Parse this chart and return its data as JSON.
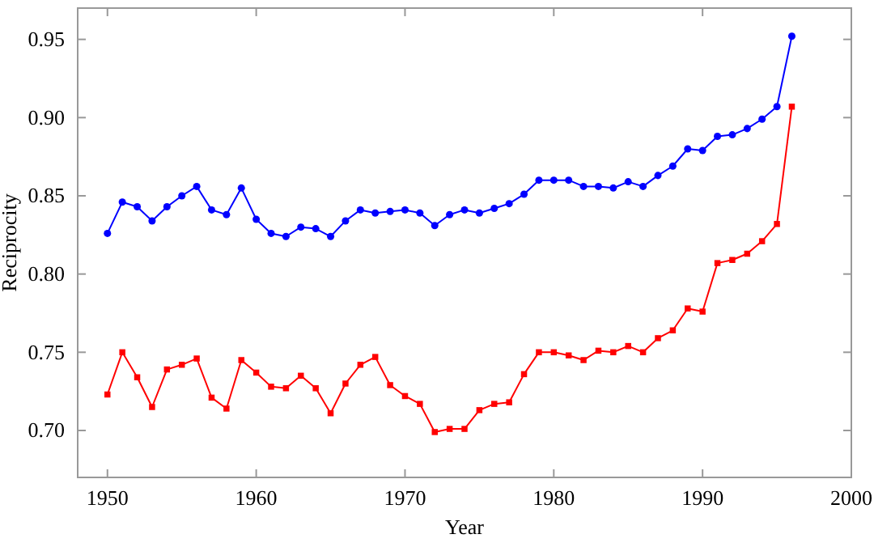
{
  "chart_data": {
    "type": "line",
    "xlabel": "Year",
    "ylabel": "Reciprocity",
    "x": [
      1950,
      1951,
      1952,
      1953,
      1954,
      1955,
      1956,
      1957,
      1958,
      1959,
      1960,
      1961,
      1962,
      1963,
      1964,
      1965,
      1966,
      1967,
      1968,
      1969,
      1970,
      1971,
      1972,
      1973,
      1974,
      1975,
      1976,
      1977,
      1978,
      1979,
      1980,
      1981,
      1982,
      1983,
      1984,
      1985,
      1986,
      1987,
      1988,
      1989,
      1990,
      1991,
      1992,
      1993,
      1994,
      1995,
      1996
    ],
    "series": [
      {
        "color": "#0000ff",
        "marker": "circle",
        "values": [
          0.826,
          0.846,
          0.843,
          0.834,
          0.843,
          0.85,
          0.856,
          0.841,
          0.838,
          0.855,
          0.835,
          0.826,
          0.824,
          0.83,
          0.829,
          0.824,
          0.834,
          0.841,
          0.839,
          0.84,
          0.841,
          0.839,
          0.831,
          0.838,
          0.841,
          0.839,
          0.842,
          0.845,
          0.851,
          0.86,
          0.86,
          0.86,
          0.856,
          0.856,
          0.855,
          0.859,
          0.856,
          0.863,
          0.869,
          0.88,
          0.879,
          0.888,
          0.889,
          0.893,
          0.899,
          0.907,
          0.952
        ]
      },
      {
        "color": "#ff0000",
        "marker": "square",
        "values": [
          0.723,
          0.75,
          0.734,
          0.715,
          0.739,
          0.742,
          0.746,
          0.721,
          0.714,
          0.745,
          0.737,
          0.728,
          0.727,
          0.735,
          0.727,
          0.711,
          0.73,
          0.742,
          0.747,
          0.729,
          0.722,
          0.717,
          0.699,
          0.701,
          0.701,
          0.713,
          0.717,
          0.718,
          0.736,
          0.75,
          0.75,
          0.748,
          0.745,
          0.751,
          0.75,
          0.754,
          0.75,
          0.759,
          0.764,
          0.778,
          0.776,
          0.807,
          0.809,
          0.813,
          0.821,
          0.832,
          0.907
        ]
      }
    ],
    "xlim": [
      1948,
      2000
    ],
    "xticks": [
      1950,
      1960,
      1970,
      1980,
      1990,
      2000
    ],
    "ylim": [
      0.67,
      0.97
    ],
    "yticks": [
      {
        "value": 0.7,
        "label": "0.70"
      },
      {
        "value": 0.75,
        "label": "0.75"
      },
      {
        "value": 0.8,
        "label": "0.80"
      },
      {
        "value": 0.85,
        "label": "0.85"
      },
      {
        "value": 0.9,
        "label": "0.90"
      },
      {
        "value": 0.95,
        "label": "0.95"
      }
    ],
    "line_style": "solid"
  }
}
